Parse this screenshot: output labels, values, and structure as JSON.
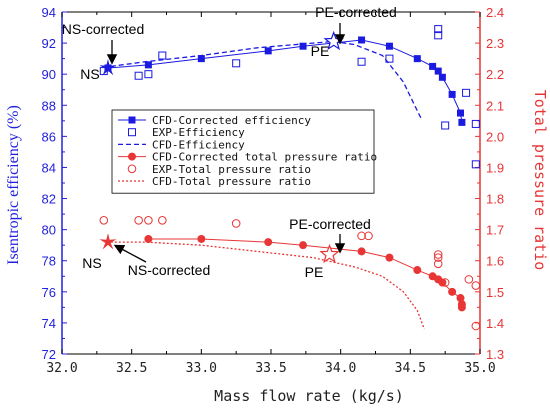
{
  "chart_data": {
    "type": "line",
    "xlabel": "Mass flow rate (kg/s)",
    "ylabel_left": "Isentropic efficiency (%)",
    "ylabel_right": "Total pressure ratio",
    "xlim": [
      32.0,
      35.0
    ],
    "ylim_left": [
      72,
      94
    ],
    "ylim_right": [
      1.3,
      2.4
    ],
    "x_ticks": [
      "32.0",
      "32.5",
      "33.0",
      "33.5",
      "34.0",
      "34.5",
      "35.0"
    ],
    "y_left_ticks": [
      "72",
      "74",
      "76",
      "78",
      "80",
      "82",
      "84",
      "86",
      "88",
      "90",
      "92",
      "94"
    ],
    "y_right_ticks": [
      "1.3",
      "1.4",
      "1.5",
      "1.6",
      "1.7",
      "1.8",
      "1.9",
      "2.0",
      "2.1",
      "2.2",
      "2.3",
      "2.4"
    ],
    "grid": false,
    "legend_position": "center-left",
    "colors": {
      "blue": "#1a1ae0",
      "red": "#e83535",
      "left_axis": "#2222dd",
      "right_axis": "#e83535"
    },
    "series": [
      {
        "name": "CFD-Corrected efficiency",
        "axis": "left",
        "style": "line-filled-square",
        "x": [
          32.33,
          32.62,
          33.0,
          33.48,
          33.73,
          34.15,
          34.35,
          34.55,
          34.66,
          34.7,
          34.73,
          34.8,
          34.86,
          34.87
        ],
        "y": [
          90.4,
          90.6,
          91.0,
          91.5,
          91.8,
          92.2,
          91.8,
          91.0,
          90.5,
          90.2,
          89.8,
          88.7,
          87.5,
          86.9
        ]
      },
      {
        "name": "EXP-Efficiency",
        "axis": "left",
        "style": "open-square",
        "x": [
          32.3,
          32.55,
          32.62,
          32.72,
          33.25,
          34.15,
          34.35,
          34.7,
          34.7,
          34.75,
          34.9,
          34.97,
          34.97
        ],
        "y": [
          90.2,
          89.9,
          90.0,
          91.2,
          90.7,
          90.8,
          91.0,
          92.9,
          92.5,
          86.7,
          88.8,
          86.8,
          84.2
        ]
      },
      {
        "name": "CFD-Efficiency",
        "axis": "left",
        "style": "dashed",
        "x": [
          32.35,
          32.6,
          33.0,
          33.4,
          33.8,
          33.95,
          34.1,
          34.3,
          34.45,
          34.52,
          34.58
        ],
        "y": [
          90.5,
          90.8,
          91.2,
          91.7,
          92.0,
          92.1,
          91.9,
          91.2,
          89.5,
          88.2,
          87.1
        ]
      },
      {
        "name": "CFD-Corrected total pressure ratio",
        "axis": "right",
        "style": "line-filled-circle",
        "x": [
          32.62,
          33.0,
          33.48,
          33.73,
          34.15,
          34.35,
          34.55,
          34.66,
          34.7,
          34.73,
          34.8,
          34.86,
          34.87,
          34.87
        ],
        "y": [
          1.67,
          1.67,
          1.66,
          1.65,
          1.63,
          1.61,
          1.57,
          1.55,
          1.54,
          1.53,
          1.5,
          1.48,
          1.46,
          1.45
        ]
      },
      {
        "name": "EXP-Total pressure ratio",
        "axis": "right",
        "style": "open-circle",
        "x": [
          32.3,
          32.55,
          32.62,
          32.72,
          33.25,
          34.15,
          34.2,
          34.7,
          34.7,
          34.7,
          34.75,
          34.92,
          34.97,
          34.97
        ],
        "y": [
          1.73,
          1.73,
          1.73,
          1.73,
          1.72,
          1.68,
          1.68,
          1.62,
          1.61,
          1.59,
          1.53,
          1.54,
          1.52,
          1.39
        ]
      },
      {
        "name": "CFD-Total pressure ratio",
        "axis": "right",
        "style": "dotted",
        "x": [
          32.35,
          32.6,
          33.0,
          33.4,
          33.8,
          34.1,
          34.3,
          34.45,
          34.55,
          34.6
        ],
        "y": [
          1.66,
          1.66,
          1.65,
          1.63,
          1.61,
          1.58,
          1.55,
          1.5,
          1.44,
          1.38
        ]
      }
    ],
    "markers": [
      {
        "label": "NS",
        "axis": "left",
        "x": 32.33,
        "y": 90.4,
        "symbol": "filled-star",
        "color": "#1a1ae0"
      },
      {
        "label": "PE",
        "axis": "left",
        "x": 33.95,
        "y": 92.1,
        "symbol": "open-star",
        "color": "#1a1ae0"
      },
      {
        "label": "NS",
        "axis": "right",
        "x": 32.33,
        "y": 1.66,
        "symbol": "filled-star",
        "color": "#e83535"
      },
      {
        "label": "PE",
        "axis": "right",
        "x": 33.92,
        "y": 1.62,
        "symbol": "open-star",
        "color": "#e83535"
      }
    ],
    "annotations": [
      {
        "text": "NS-corrected",
        "axis": "left",
        "point_x": 32.62,
        "point_y": 90.6,
        "arrow": true
      },
      {
        "text": "PE-corrected",
        "axis": "left",
        "point_x": 34.15,
        "point_y": 92.2,
        "arrow": true
      },
      {
        "text": "PE-corrected",
        "axis": "right",
        "point_x": 34.15,
        "point_y": 1.63,
        "arrow": true
      },
      {
        "text": "NS-corrected",
        "axis": "right",
        "point_x": 32.62,
        "point_y": 1.67,
        "arrow": true
      },
      {
        "text": "NS",
        "axis": "left",
        "point_x": 32.33,
        "point_y": 90.4,
        "arrow": false
      },
      {
        "text": "PE",
        "axis": "left",
        "point_x": 33.95,
        "point_y": 92.1,
        "arrow": false
      },
      {
        "text": "NS",
        "axis": "right",
        "point_x": 32.33,
        "point_y": 1.66,
        "arrow": false
      },
      {
        "text": "PE",
        "axis": "right",
        "point_x": 33.92,
        "point_y": 1.62,
        "arrow": false
      }
    ]
  }
}
